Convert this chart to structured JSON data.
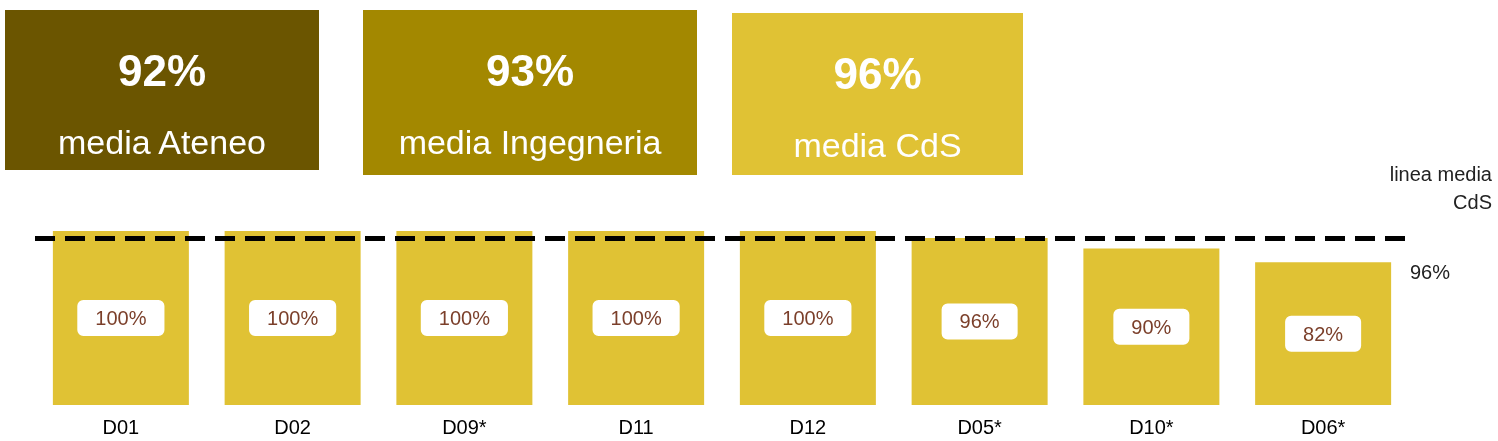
{
  "chart_data": {
    "type": "bar",
    "categories": [
      "D01",
      "D02",
      "D09*",
      "D11",
      "D12",
      "D05*",
      "D10*",
      "D06*"
    ],
    "values": [
      100,
      100,
      100,
      100,
      100,
      96,
      90,
      82
    ],
    "value_labels": [
      "100%",
      "100%",
      "100%",
      "100%",
      "100%",
      "96%",
      "90%",
      "82%"
    ],
    "color": "#e0c234",
    "ylim": [
      0,
      100
    ],
    "tick_labels": "x",
    "grid": false,
    "ref_lines": [
      {
        "axis": "y",
        "value": 96,
        "label": "linea media CdS",
        "color": "#000000",
        "line_style": "dashed"
      }
    ],
    "annotations": [
      "92%",
      "media Ateneo",
      "93%",
      "media Ingegneria",
      "96%",
      "media CdS",
      "96%"
    ]
  }
}
